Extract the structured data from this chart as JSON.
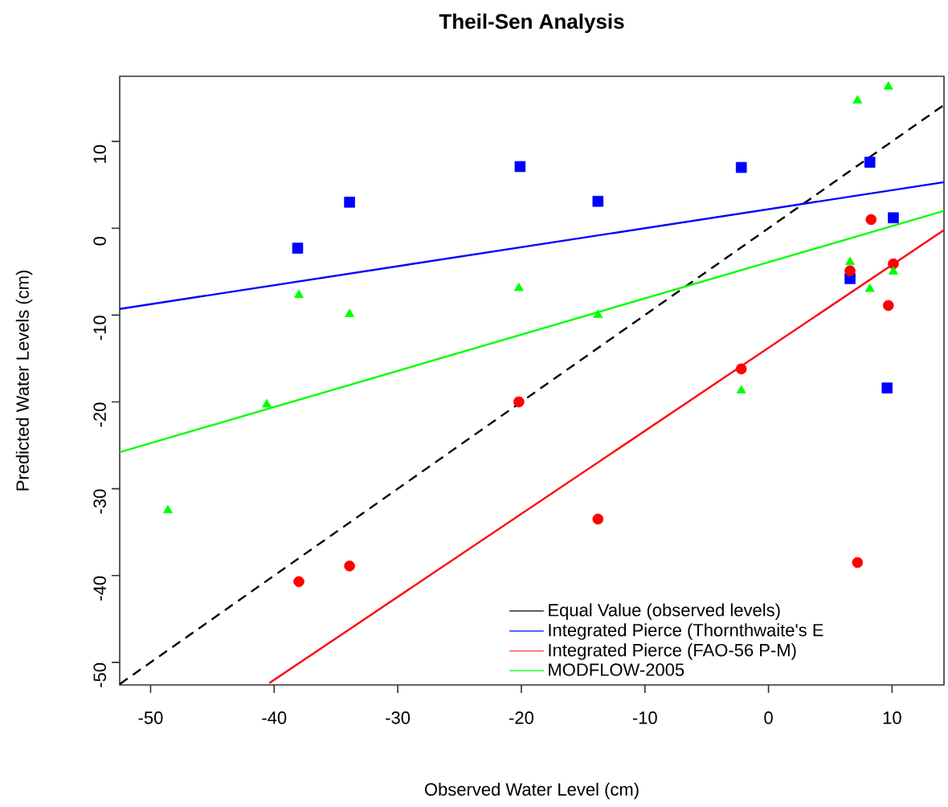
{
  "chart_data": {
    "type": "scatter",
    "title": "Theil-Sen Analysis",
    "xlabel": "Observed Water Level (cm)",
    "ylabel": "Predicted Water Levels (cm)",
    "xlim": [
      -52.5,
      14.2
    ],
    "ylim": [
      -52.6,
      17.5
    ],
    "xticks": [
      -50,
      -40,
      -30,
      -20,
      -10,
      0,
      10
    ],
    "yticks": [
      -50,
      -40,
      -30,
      -20,
      -10,
      0,
      10
    ],
    "legend": "bottom right",
    "series": [
      {
        "name": "Equal Value (observed levels)",
        "type": "line",
        "color": "#000000",
        "line_style": "dashed",
        "marker": "none",
        "x": [
          -52.5,
          14.2
        ],
        "values": [
          -52.5,
          14.2
        ]
      },
      {
        "name": "Integrated Pierce (Thornthwaite's E",
        "type": "line",
        "color": "#0000ff",
        "line_style": "solid",
        "marker": "none",
        "x": [
          -52.5,
          14.2
        ],
        "values": [
          -9.3,
          5.3
        ]
      },
      {
        "name": "Integrated Pierce (FAO-56 P-M)",
        "type": "line",
        "color": "#ff0000",
        "line_style": "solid",
        "marker": "none",
        "x": [
          -40.4,
          14.2
        ],
        "values": [
          -52.4,
          -0.2
        ]
      },
      {
        "name": "MODFLOW-2005",
        "type": "line",
        "color": "#00ff00",
        "line_style": "solid",
        "marker": "none",
        "x": [
          -52.5,
          14.2
        ],
        "values": [
          -25.8,
          2.0
        ]
      },
      {
        "color": "#0000ff",
        "marker": "square",
        "x": [
          -38.1,
          -33.9,
          -20.1,
          -13.8,
          -2.2,
          6.6,
          8.2,
          9.6,
          10.1
        ],
        "values": [
          -2.3,
          3.0,
          7.1,
          3.1,
          7.0,
          -5.8,
          7.6,
          -18.4,
          1.2
        ]
      },
      {
        "color": "#ff0000",
        "marker": "circle",
        "x": [
          -38.0,
          -33.9,
          -20.2,
          -13.8,
          -2.2,
          6.6,
          7.2,
          8.3,
          9.7,
          10.1
        ],
        "values": [
          -40.7,
          -38.9,
          -20.0,
          -33.5,
          -16.2,
          -4.9,
          -38.5,
          1.0,
          -8.9,
          -4.1
        ]
      },
      {
        "color": "#00ff00",
        "marker": "triangle",
        "x": [
          -48.6,
          -40.6,
          -38.0,
          -33.9,
          -20.2,
          -13.8,
          -2.2,
          6.6,
          7.2,
          8.2,
          9.7,
          10.1
        ],
        "values": [
          -32.5,
          -20.3,
          -7.7,
          -9.9,
          -6.9,
          -10.0,
          -18.7,
          -3.9,
          14.7,
          -7.0,
          16.3,
          -5.0
        ]
      }
    ]
  }
}
